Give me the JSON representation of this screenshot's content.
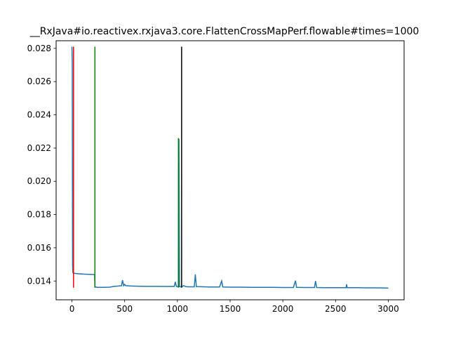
{
  "chart_data": {
    "type": "line",
    "title": "__RxJava#io.reactivex.rxjava3.core.FlattenCrossMapPerf.flowable#times=1000",
    "xlabel": "",
    "ylabel": "",
    "xlim": [
      -150,
      3150
    ],
    "ylim": [
      0.01287,
      0.02846
    ],
    "x_ticks": [
      0,
      500,
      1000,
      1500,
      2000,
      2500,
      3000
    ],
    "x_tick_labels": [
      "0",
      "500",
      "1000",
      "1500",
      "2000",
      "2500",
      "3000"
    ],
    "y_ticks": [
      0.014,
      0.016,
      0.018,
      0.02,
      0.022,
      0.024,
      0.026,
      0.028
    ],
    "y_tick_labels": [
      "0.014",
      "0.016",
      "0.018",
      "0.020",
      "0.022",
      "0.024",
      "0.026",
      "0.028"
    ],
    "grid": false,
    "series": [
      {
        "color": "#1f77b4",
        "points": [
          [
            0,
            0.0281
          ],
          [
            3,
            0.0272
          ],
          [
            6,
            0.015
          ],
          [
            9,
            0.0145
          ],
          [
            15,
            0.01447
          ],
          [
            40,
            0.01445
          ],
          [
            80,
            0.01443
          ],
          [
            120,
            0.01441
          ],
          [
            160,
            0.0144
          ],
          [
            200,
            0.01439
          ],
          [
            215,
            0.0144
          ],
          [
            218,
            0.01365
          ],
          [
            240,
            0.01362
          ],
          [
            300,
            0.01362
          ],
          [
            360,
            0.01363
          ],
          [
            400,
            0.01368
          ],
          [
            440,
            0.0137
          ],
          [
            470,
            0.01372
          ],
          [
            480,
            0.01405
          ],
          [
            490,
            0.01372
          ],
          [
            500,
            0.0138
          ],
          [
            510,
            0.01372
          ],
          [
            560,
            0.0137
          ],
          [
            620,
            0.01369
          ],
          [
            700,
            0.01368
          ],
          [
            800,
            0.01368
          ],
          [
            900,
            0.01367
          ],
          [
            970,
            0.01367
          ],
          [
            980,
            0.01395
          ],
          [
            990,
            0.01367
          ],
          [
            1010,
            0.01366
          ],
          [
            1015,
            0.02255
          ],
          [
            1020,
            0.01366
          ],
          [
            1040,
            0.01365
          ],
          [
            1060,
            0.01372
          ],
          [
            1080,
            0.01366
          ],
          [
            1100,
            0.01365
          ],
          [
            1160,
            0.01365
          ],
          [
            1170,
            0.0144
          ],
          [
            1180,
            0.01366
          ],
          [
            1250,
            0.01365
          ],
          [
            1300,
            0.01364
          ],
          [
            1400,
            0.01364
          ],
          [
            1420,
            0.014
          ],
          [
            1430,
            0.01364
          ],
          [
            1500,
            0.01363
          ],
          [
            1600,
            0.01363
          ],
          [
            1700,
            0.01362
          ],
          [
            1800,
            0.01362
          ],
          [
            1900,
            0.01362
          ],
          [
            2000,
            0.01361
          ],
          [
            2100,
            0.01361
          ],
          [
            2120,
            0.01402
          ],
          [
            2130,
            0.01362
          ],
          [
            2200,
            0.01361
          ],
          [
            2300,
            0.01361
          ],
          [
            2310,
            0.014
          ],
          [
            2320,
            0.01361
          ],
          [
            2400,
            0.0136
          ],
          [
            2500,
            0.0136
          ],
          [
            2600,
            0.0136
          ],
          [
            2605,
            0.0138
          ],
          [
            2610,
            0.0136
          ],
          [
            2700,
            0.0136
          ],
          [
            2800,
            0.01359
          ],
          [
            2900,
            0.01359
          ],
          [
            3000,
            0.01358
          ]
        ]
      }
    ],
    "vertical_lines": [
      {
        "x": 15,
        "ymin": 0.0136,
        "ymax": 0.0281,
        "color": "#ff0000"
      },
      {
        "x": 218,
        "ymin": 0.0136,
        "ymax": 0.0281,
        "color": "#008000"
      },
      {
        "x": 1010,
        "ymin": 0.0136,
        "ymax": 0.0226,
        "color": "#008000"
      },
      {
        "x": 1040,
        "ymin": 0.0136,
        "ymax": 0.0281,
        "color": "#000000"
      }
    ]
  }
}
